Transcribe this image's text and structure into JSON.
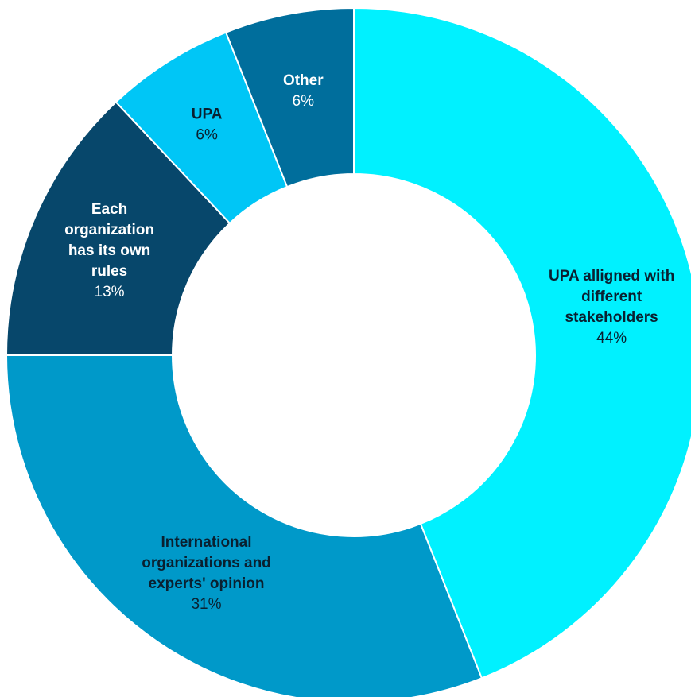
{
  "chart_data": {
    "type": "pie",
    "title": "",
    "slices": [
      {
        "name": "UPA alligned with different stakeholders",
        "label_lines": [
          "UPA alligned with",
          "different",
          "stakeholders"
        ],
        "value": 44,
        "value_label": "44%",
        "color": "#00f1ff",
        "name_color": "#0a2030",
        "value_color": "#0a2030"
      },
      {
        "name": "International organizations and experts' opinion",
        "label_lines": [
          "International",
          "organizations and",
          "experts' opinion"
        ],
        "value": 31,
        "value_label": "31%",
        "color": "#0099c9",
        "name_color": "#0a2030",
        "value_color": "#0a2030"
      },
      {
        "name": "Each organization has its own rules",
        "label_lines": [
          "Each",
          "organization",
          "has its own",
          "rules"
        ],
        "value": 13,
        "value_label": "13%",
        "color": "#07476b",
        "name_color": "#ffffff",
        "value_color": "#ffffff"
      },
      {
        "name": "UPA",
        "label_lines": [
          "UPA"
        ],
        "value": 6,
        "value_label": "6%",
        "color": "#00c6f6",
        "name_color": "#0a2030",
        "value_color": "#0a2030"
      },
      {
        "name": "Other",
        "label_lines": [
          "Other"
        ],
        "value": 6,
        "value_label": "6%",
        "color": "#006e9c",
        "name_color": "#ffffff",
        "value_color": "#ffffff"
      }
    ]
  }
}
